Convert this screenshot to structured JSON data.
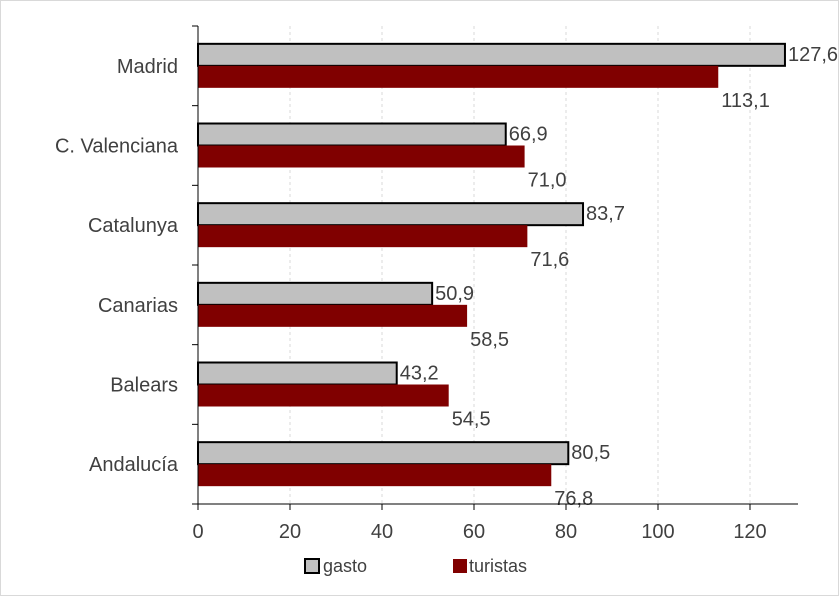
{
  "chart_data": {
    "type": "bar",
    "orientation": "horizontal",
    "title": "",
    "xlabel": "",
    "ylabel": "",
    "categories": [
      "Madrid",
      "C. Valenciana",
      "Catalunya",
      "Canarias",
      "Balears",
      "Andalucía"
    ],
    "series": [
      {
        "name": "gasto",
        "values": [
          127.6,
          66.9,
          83.7,
          50.9,
          43.2,
          80.5
        ],
        "labels": [
          "127,6",
          "66,9",
          "83,7",
          "50,9",
          "43,2",
          "80,5"
        ],
        "color": "#c0c0c0"
      },
      {
        "name": "turistas",
        "values": [
          113.1,
          71.0,
          71.6,
          58.5,
          54.5,
          76.8
        ],
        "labels": [
          "113,1",
          "71,0",
          "71,6",
          "58,5",
          "54,5",
          "76,8"
        ],
        "color": "#800000"
      }
    ],
    "xlim": [
      0,
      130
    ],
    "xticks": [
      "0",
      "20",
      "40",
      "60",
      "80",
      "100",
      "120"
    ],
    "grid": "vertical",
    "legend": "bottom"
  }
}
